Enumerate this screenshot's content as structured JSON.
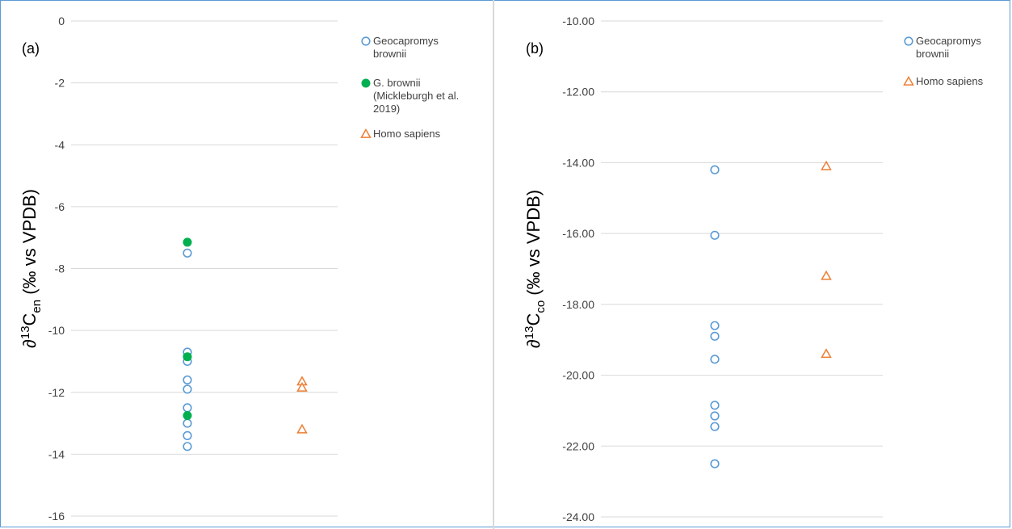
{
  "chart_data": [
    {
      "type": "scatter",
      "panel_label": "(a)",
      "ylabel": {
        "prefix": "∂",
        "sup": "13",
        "main": "C",
        "sub": "en",
        "unit": " (‰ vs VPDB)"
      },
      "ylim": [
        -16,
        0
      ],
      "yticks": [
        0,
        -2,
        -4,
        -6,
        -8,
        -10,
        -12,
        -14,
        -16
      ],
      "tick_decimals": 0,
      "grid": true,
      "legend_position": "right",
      "series": [
        {
          "name": "Geocapromys brownii",
          "marker": "circle-open",
          "color": "#5b9bd5",
          "x": 1,
          "values": [
            -7.5,
            -10.7,
            -11.0,
            -11.6,
            -11.9,
            -12.5,
            -13.0,
            -13.4,
            -13.75
          ]
        },
        {
          "name": "G. brownii (Mickleburgh et al. 2019)",
          "marker": "circle-filled",
          "color": "#00b050",
          "x": 1,
          "values": [
            -7.15,
            -10.85,
            -12.75
          ]
        },
        {
          "name": "Homo sapiens",
          "marker": "triangle-open",
          "color": "#ed7d31",
          "x": 2,
          "values": [
            -11.65,
            -11.85,
            -13.2
          ]
        }
      ],
      "legend": [
        {
          "lines": [
            "Geocapromys",
            "brownii"
          ]
        },
        {
          "lines": [
            "G. brownii",
            "(Mickleburgh et al.",
            "2019)"
          ]
        },
        {
          "lines": [
            "Homo sapiens"
          ]
        }
      ]
    },
    {
      "type": "scatter",
      "panel_label": "(b)",
      "ylabel": {
        "prefix": "∂",
        "sup": "13",
        "main": "C",
        "sub": "co",
        "unit": " (‰ vs VPDB)"
      },
      "ylim": [
        -24,
        -10
      ],
      "yticks": [
        -10,
        -12,
        -14,
        -16,
        -18,
        -20,
        -22,
        -24
      ],
      "tick_decimals": 2,
      "grid": true,
      "legend_position": "right",
      "series": [
        {
          "name": "Geocapromys brownii",
          "marker": "circle-open",
          "color": "#5b9bd5",
          "x": 1,
          "values": [
            -14.2,
            -16.05,
            -18.6,
            -18.9,
            -19.55,
            -20.85,
            -21.15,
            -21.45,
            -22.5
          ]
        },
        {
          "name": "Homo sapiens",
          "marker": "triangle-open",
          "color": "#ed7d31",
          "x": 2,
          "values": [
            -14.1,
            -17.2,
            -19.4
          ]
        }
      ],
      "legend": [
        {
          "lines": [
            "Geocapromys",
            "brownii"
          ]
        },
        {
          "lines": [
            "Homo sapiens"
          ]
        }
      ]
    }
  ]
}
